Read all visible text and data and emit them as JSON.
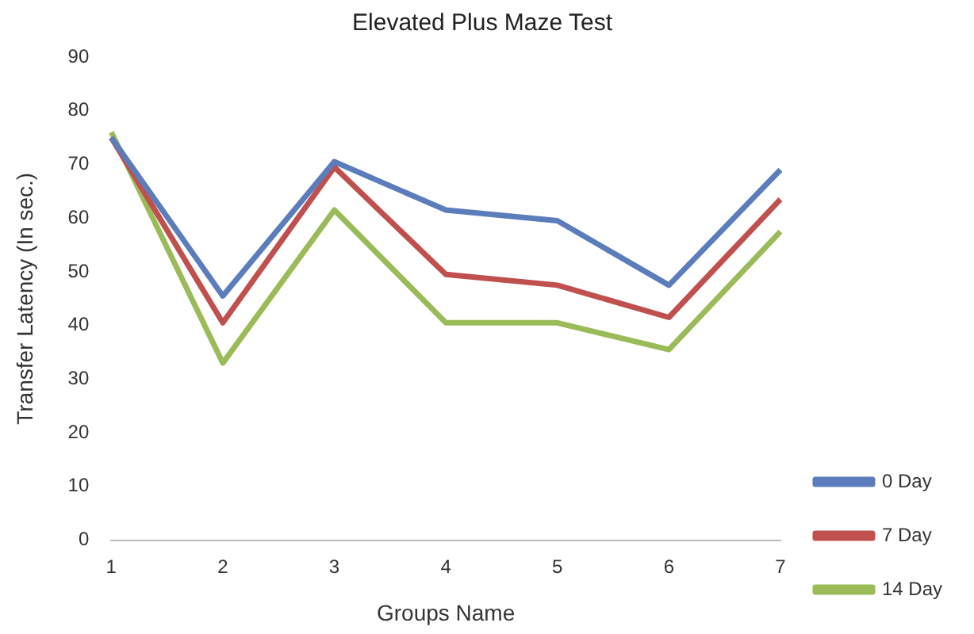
{
  "chart_data": {
    "type": "line",
    "title": "Elevated Plus Maze Test",
    "xlabel": "Groups Name",
    "ylabel": "Transfer Latency (In sec.)",
    "categories": [
      "1",
      "2",
      "3",
      "4",
      "5",
      "6",
      "7"
    ],
    "series": [
      {
        "name": "0 Day",
        "color": "#5b7dbc",
        "values": [
          75,
          45.5,
          70.5,
          61.5,
          59.5,
          47.5,
          69
        ]
      },
      {
        "name": "7 Day",
        "color": "#c0504d",
        "values": [
          75,
          40.5,
          69.5,
          49.5,
          47.5,
          41.5,
          63.5
        ]
      },
      {
        "name": "14 Day",
        "color": "#9bbb59",
        "values": [
          76,
          33,
          61.5,
          40.5,
          40.5,
          35.5,
          57.5
        ]
      }
    ],
    "ylim": [
      0,
      90
    ],
    "yticks": [
      0,
      10,
      20,
      30,
      40,
      50,
      60,
      70,
      80,
      90
    ],
    "grid": false,
    "legend": "bottom right",
    "marker": "none",
    "line_style": "solid"
  }
}
